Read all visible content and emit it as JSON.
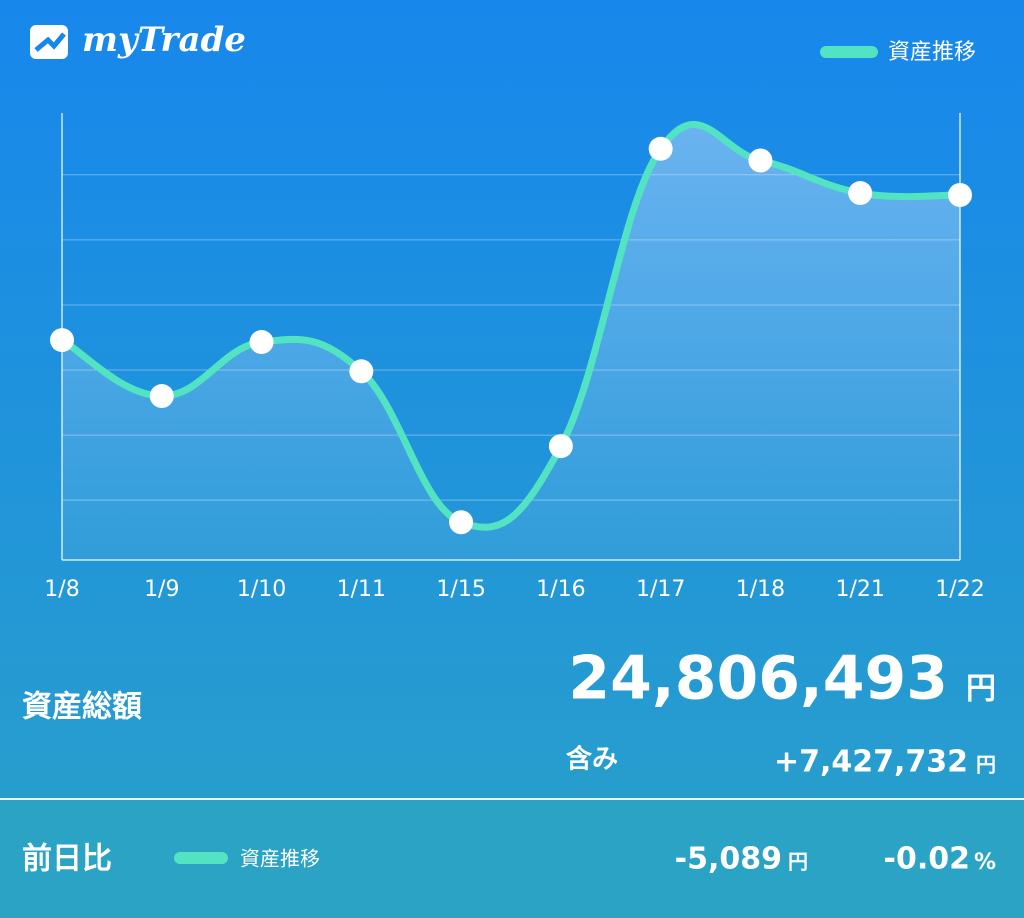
{
  "app": {
    "name": "myTrade"
  },
  "chart_data": {
    "type": "line",
    "categories": [
      "1/8",
      "1/9",
      "1/10",
      "1/11",
      "1/15",
      "1/16",
      "1/17",
      "1/18",
      "1/21",
      "1/22"
    ],
    "series": [
      {
        "name": "資産推移",
        "color": "#52e3c2",
        "values": [
          3.46,
          2.6,
          3.43,
          2.98,
          0.66,
          1.83,
          6.4,
          6.22,
          5.72,
          5.69
        ]
      }
    ],
    "ylim": [
      0.08,
      6.95
    ],
    "yticks": [
      1,
      2,
      3,
      4,
      5,
      6
    ],
    "grid": true,
    "legend": "top-right"
  },
  "summary": {
    "total_label": "資産総額",
    "total": "24,806,493",
    "total_unit": "円",
    "unrealized_label": "含み",
    "unrealized": "+7,427,732",
    "unrealized_unit": "円"
  },
  "daily": {
    "label": "前日比",
    "legend": "資産推移",
    "change": "-5,089",
    "change_unit": "円",
    "percent": "-0.02",
    "percent_unit": "%"
  }
}
